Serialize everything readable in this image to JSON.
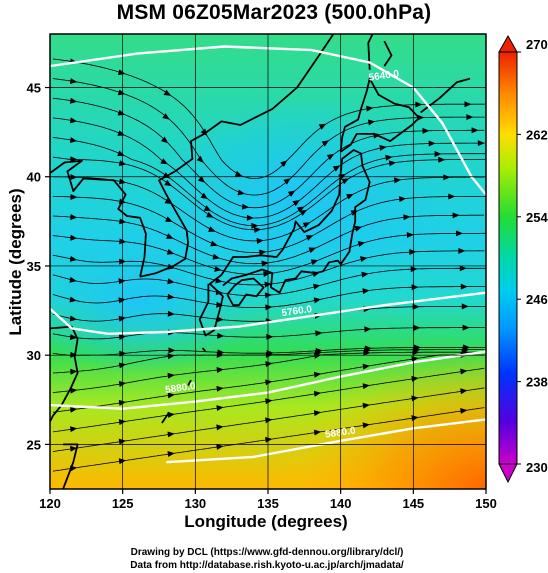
{
  "title": "MSM 06Z05Mar2023 (500.0hPa)",
  "axes": {
    "xlabel": "Longitude (degrees)",
    "ylabel": "Latitude  (degrees)",
    "xlim": [
      120,
      150
    ],
    "ylim": [
      22.5,
      48
    ],
    "xticks": [
      "120",
      "125",
      "130",
      "135",
      "140",
      "145",
      "150"
    ],
    "yticks": [
      "25",
      "30",
      "35",
      "40",
      "45"
    ]
  },
  "colorbar": {
    "range": [
      230,
      270
    ],
    "ticks": [
      "270",
      "262",
      "254",
      "246",
      "238",
      "230"
    ],
    "colors": [
      "#cc00cc",
      "#2a00d8",
      "#0066ff",
      "#00ccff",
      "#22dd33",
      "#ffee00",
      "#ff8800",
      "#ee2200"
    ]
  },
  "contour_labels": [
    {
      "text": "5640.0",
      "lon": 143,
      "lat": 45.5
    },
    {
      "text": "5760.0",
      "lon": 137,
      "lat": 32.3
    },
    {
      "text": "5880.0",
      "lon": 129,
      "lat": 28.0
    },
    {
      "text": "5880.0",
      "lon": 140,
      "lat": 25.5
    }
  ],
  "credits": [
    "Drawing by DCL (https://www.gfd-dennou.org/library/dcl/)",
    "Data from http://database.rish.kyoto-u.ac.jp/arch/jmadata/"
  ]
}
